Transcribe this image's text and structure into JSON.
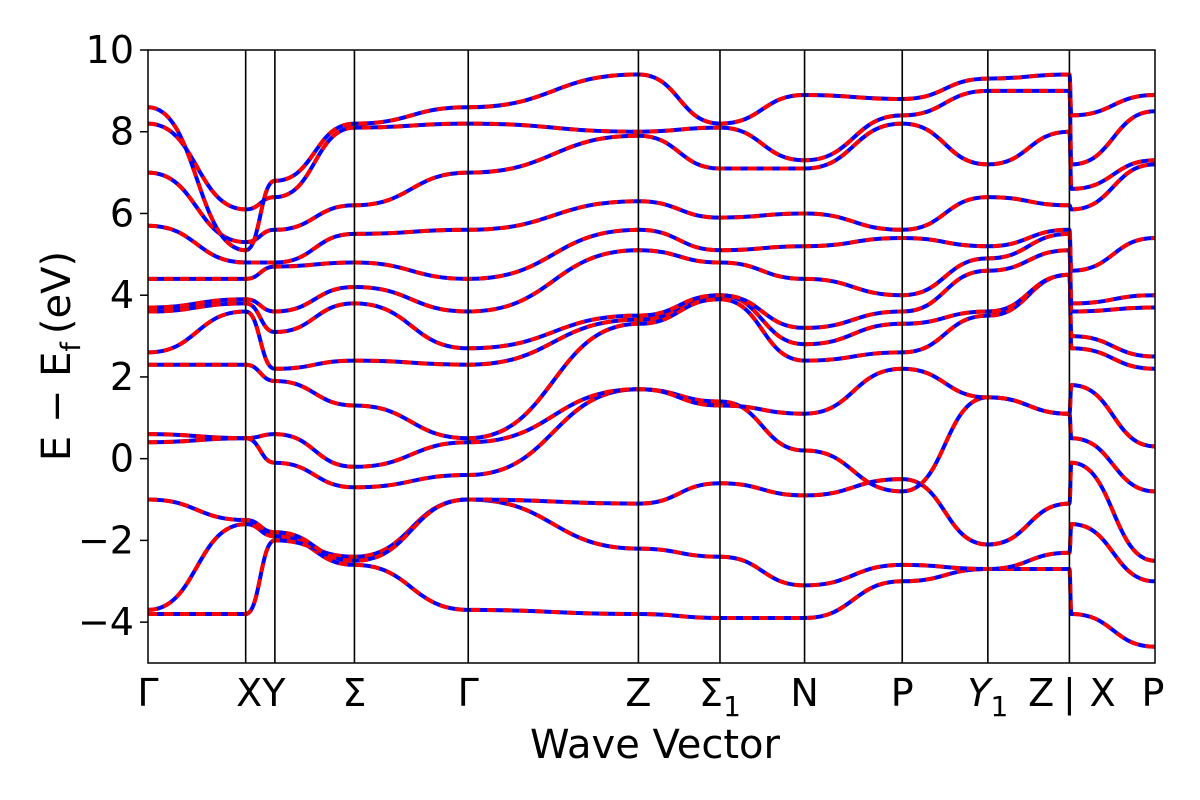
{
  "chart_data": {
    "type": "line",
    "title": "",
    "xlabel": "Wave Vector",
    "ylabel": "E − E",
    "ylabel_subscript": "f",
    "ylabel_unit": "(eV)",
    "ylim": [
      -5,
      10
    ],
    "xlim": [
      0,
      1
    ],
    "y_ticks": [
      {
        "value": -4,
        "label": "−4"
      },
      {
        "value": -2,
        "label": "−2"
      },
      {
        "value": 0,
        "label": "0"
      },
      {
        "value": 2,
        "label": "2"
      },
      {
        "value": 4,
        "label": "4"
      },
      {
        "value": 6,
        "label": "6"
      },
      {
        "value": 8,
        "label": "8"
      },
      {
        "value": 10,
        "label": "10"
      }
    ],
    "kpoints": [
      {
        "label": "Γ",
        "x": 0.0
      },
      {
        "label": "XY",
        "x": 0.097
      },
      {
        "label": "Σ",
        "x": 0.205
      },
      {
        "label": "Γ",
        "x": 0.318
      },
      {
        "label": "Z",
        "x": 0.487
      },
      {
        "label": "Σ",
        "sub": "1",
        "x": 0.568
      },
      {
        "label": "N",
        "x": 0.652
      },
      {
        "label": "P",
        "x": 0.749
      },
      {
        "label": "Y",
        "sub": "1",
        "x": 0.834,
        "italic": true
      },
      {
        "label": "Z | ",
        "x": 0.915
      },
      {
        "label": "X",
        "x": 0.95
      },
      {
        "label": "P",
        "x": 1.0
      }
    ],
    "x_tick_text": [
      {
        "label": "Γ",
        "x": 0.0
      },
      {
        "label": "XY",
        "x": 0.112
      },
      {
        "label": "Σ",
        "x": 0.205
      },
      {
        "label": "Γ",
        "x": 0.318
      },
      {
        "label": "Z",
        "x": 0.487
      },
      {
        "label": "Σ",
        "sub": "1",
        "x": 0.568
      },
      {
        "label": "N",
        "x": 0.652
      },
      {
        "label": "P",
        "x": 0.749
      },
      {
        "label": "Y",
        "sub": "1",
        "x": 0.834,
        "italic": true
      },
      {
        "label": "Z",
        "x": 0.887
      },
      {
        "label": "|",
        "x": 0.915
      },
      {
        "label": "X",
        "x": 0.948
      },
      {
        "label": "P",
        "x": 0.998
      }
    ],
    "vlines": [
      0.097,
      0.126,
      0.205,
      0.318,
      0.487,
      0.568,
      0.652,
      0.749,
      0.834,
      0.915
    ],
    "grid": false,
    "legend": "none",
    "series_style": {
      "under_color": "#0000ff",
      "over_color": "#ff0000",
      "over_dash": "dashed",
      "line_color": "#000000"
    },
    "nodes": [
      0.0,
      0.097,
      0.126,
      0.205,
      0.318,
      0.487,
      0.568,
      0.652,
      0.749,
      0.834,
      0.915,
      0.917,
      1.0
    ],
    "bands": [
      [
        -3.7,
        -1.6,
        -1.9,
        -2.6,
        -3.7,
        -3.8,
        -3.9,
        -3.9,
        -3.0,
        -2.7,
        -2.7,
        -3.8,
        -4.6
      ],
      [
        -3.8,
        -3.8,
        -2.0,
        -2.4,
        -1.0,
        -2.2,
        -2.4,
        -3.1,
        -2.6,
        -2.7,
        -2.3,
        -1.6,
        -3.0
      ],
      [
        -1.0,
        -1.5,
        -1.8,
        -2.5,
        -1.0,
        -1.1,
        -0.6,
        -0.9,
        -0.5,
        -2.1,
        -1.1,
        -0.1,
        -2.5
      ],
      [
        0.4,
        0.5,
        -0.1,
        -0.7,
        -0.4,
        1.7,
        1.4,
        0.2,
        -0.8,
        1.5,
        1.1,
        0.5,
        -0.8
      ],
      [
        0.6,
        0.5,
        0.6,
        -0.2,
        0.4,
        1.7,
        1.3,
        1.1,
        2.2,
        1.5,
        1.1,
        1.8,
        0.3
      ],
      [
        2.3,
        2.3,
        1.9,
        1.3,
        0.5,
        3.3,
        3.9,
        2.4,
        2.6,
        3.5,
        4.5,
        2.7,
        2.2
      ],
      [
        2.6,
        3.6,
        2.2,
        2.4,
        2.3,
        3.4,
        4.0,
        2.8,
        3.3,
        3.6,
        4.5,
        3.0,
        2.5
      ],
      [
        3.6,
        3.8,
        3.1,
        3.8,
        2.7,
        3.5,
        4.0,
        3.2,
        3.6,
        4.6,
        5.1,
        3.6,
        3.7
      ],
      [
        3.7,
        3.9,
        3.6,
        4.2,
        3.6,
        5.1,
        4.8,
        4.4,
        4.0,
        4.9,
        5.5,
        3.8,
        4.0
      ],
      [
        4.4,
        4.4,
        4.7,
        4.8,
        4.4,
        5.6,
        5.1,
        5.2,
        5.4,
        5.2,
        5.6,
        4.6,
        5.4
      ],
      [
        5.7,
        4.8,
        4.8,
        5.5,
        5.6,
        6.3,
        5.9,
        6.0,
        5.6,
        6.4,
        6.2,
        6.1,
        7.2
      ],
      [
        7.0,
        5.3,
        5.6,
        6.2,
        7.0,
        7.9,
        7.1,
        7.1,
        8.2,
        7.2,
        8.0,
        6.6,
        7.3
      ],
      [
        8.2,
        6.1,
        6.4,
        8.1,
        8.2,
        8.0,
        8.1,
        7.3,
        8.4,
        9.0,
        9.0,
        7.2,
        8.5
      ],
      [
        8.6,
        5.1,
        6.8,
        8.2,
        8.6,
        9.4,
        8.2,
        8.9,
        8.8,
        9.3,
        9.4,
        8.4,
        8.9
      ]
    ]
  }
}
